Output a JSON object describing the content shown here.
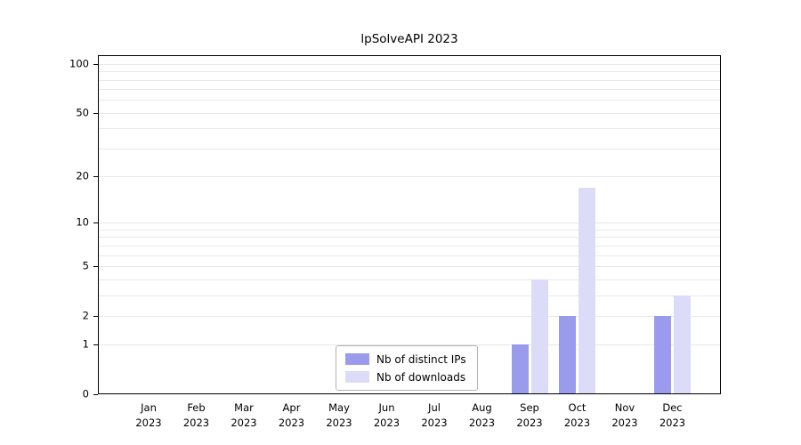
{
  "chart_data": {
    "type": "bar",
    "title": "lpSolveAPI 2023",
    "categories": [
      "Jan",
      "Feb",
      "Mar",
      "Apr",
      "May",
      "Jun",
      "Jul",
      "Aug",
      "Sep",
      "Oct",
      "Nov",
      "Dec"
    ],
    "year_label": "2023",
    "series": [
      {
        "name": "Nb of distinct IPs",
        "color": "#9b9bee",
        "values": [
          0,
          0,
          0,
          0,
          0,
          0,
          0,
          0,
          1,
          2,
          0,
          2
        ]
      },
      {
        "name": "Nb of downloads",
        "color": "#dcdcf9",
        "values": [
          0,
          0,
          0,
          0,
          0,
          0,
          0,
          0,
          4,
          17,
          0,
          3
        ]
      }
    ],
    "yscale": "log1p",
    "ylim": [
      0,
      113
    ],
    "yticks": [
      0,
      1,
      2,
      5,
      10,
      20,
      50,
      100
    ],
    "gridlines": [
      1,
      2,
      3,
      4,
      5,
      6,
      7,
      8,
      9,
      10,
      20,
      30,
      40,
      50,
      60,
      70,
      80,
      90,
      100
    ],
    "grid_color": "#e8e8e8",
    "axis_color": "#000000",
    "legend_position": "bottom-center-inside",
    "grid": true
  }
}
